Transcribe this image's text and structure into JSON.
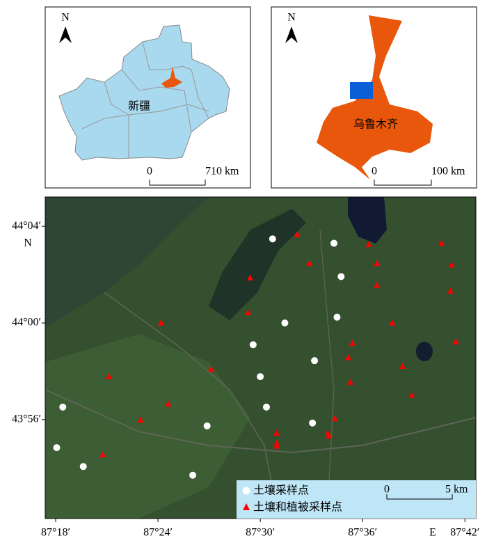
{
  "insets": [
    {
      "north": "N",
      "label": "新疆",
      "scale": {
        "zero": "0",
        "length": "710 km"
      }
    },
    {
      "north": "N",
      "label": "乌鲁木齐",
      "scale": {
        "zero": "0",
        "length": "100 km"
      }
    }
  ],
  "map": {
    "lonlim": [
      87.2898,
      87.7107
    ],
    "latlim": [
      43.8651,
      44.0869
    ],
    "lon_ticks": [
      {
        "value": 87.3,
        "label": "87°18′"
      },
      {
        "value": 87.4,
        "label": "87°24′"
      },
      {
        "value": 87.5,
        "label": "87°30′"
      },
      {
        "value": 87.6,
        "label": "87°36′"
      },
      {
        "value": 87.7,
        "label": "87°42′"
      }
    ],
    "lat_ticks": [
      {
        "value": 44.06667,
        "label": "44°04′"
      },
      {
        "value": 44.0,
        "label": "44°00′"
      },
      {
        "value": 43.93333,
        "label": "43°56′"
      }
    ],
    "lon_label": "E",
    "lat_label": "N",
    "scale": {
      "zero": "0",
      "length": "5 km"
    },
    "series": [
      {
        "name": "土壤采样点",
        "color": "#ffffff",
        "marker": "circle",
        "lon": [
          87.512,
          87.572,
          87.579,
          87.524,
          87.575,
          87.493,
          87.553,
          87.5,
          87.506,
          87.307,
          87.448,
          87.551,
          87.301,
          87.327,
          87.434
        ],
        "lat": [
          44.058,
          44.055,
          44.032,
          44.0,
          44.004,
          43.985,
          43.974,
          43.963,
          43.942,
          43.942,
          43.929,
          43.931,
          43.914,
          43.901,
          43.895
        ]
      },
      {
        "name": "土壤和植被采样点",
        "color": "#ff0000",
        "marker": "triangle",
        "lon": [
          87.536,
          87.606,
          87.677,
          87.548,
          87.614,
          87.687,
          87.49,
          87.614,
          87.686,
          87.488,
          87.403,
          87.629,
          87.59,
          87.691,
          87.586,
          87.452,
          87.639,
          87.352,
          87.588,
          87.648,
          87.41,
          87.383,
          87.573,
          87.516,
          87.566,
          87.516,
          87.567,
          87.516,
          87.346
        ],
        "lat": [
          44.061,
          44.054,
          44.055,
          44.041,
          44.041,
          44.04,
          44.031,
          44.026,
          44.022,
          44.007,
          44.0,
          44.0,
          43.986,
          43.987,
          43.976,
          43.968,
          43.97,
          43.963,
          43.959,
          43.95,
          43.944,
          43.933,
          43.934,
          43.924,
          43.924,
          43.917,
          43.922,
          43.915,
          43.909
        ]
      }
    ]
  }
}
